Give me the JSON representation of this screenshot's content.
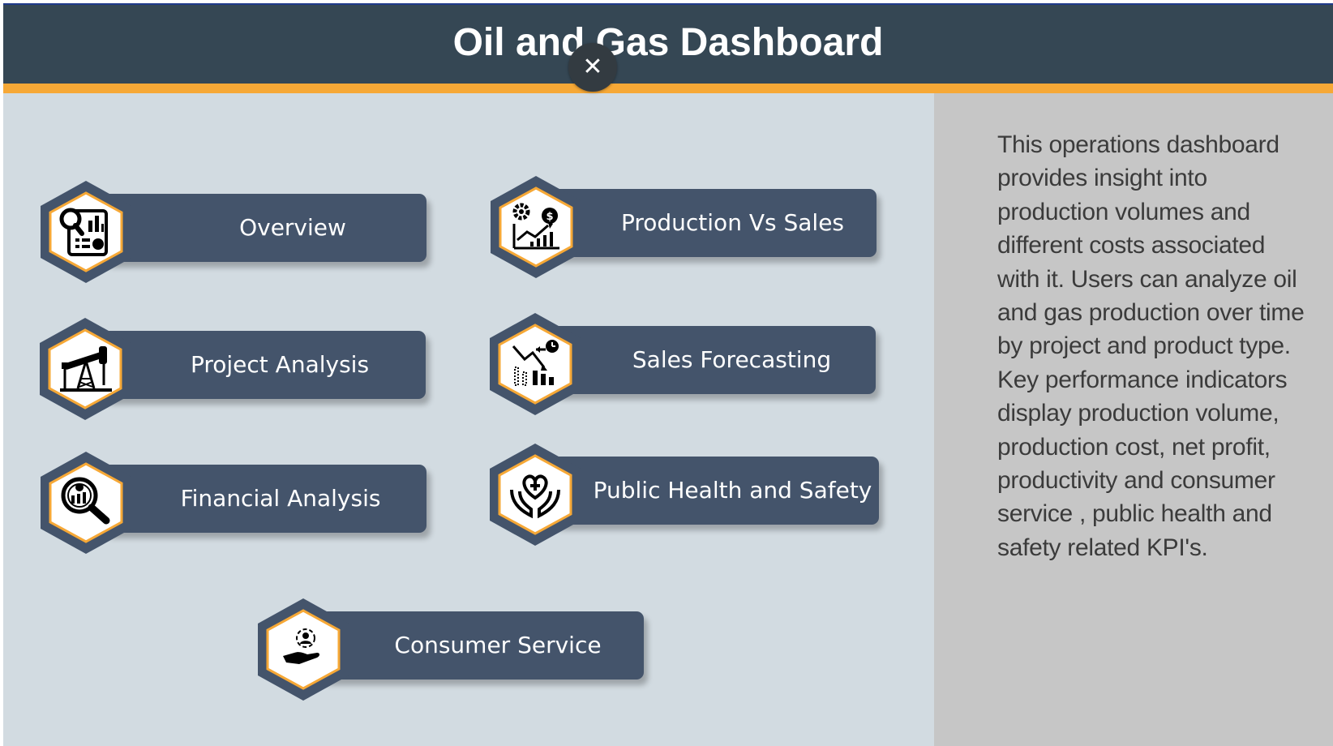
{
  "header": {
    "title": "Oil and Gas Dashboard",
    "close_symbol": "✕"
  },
  "nav": {
    "overview": {
      "label": "Overview",
      "icon": "report-analytics-icon"
    },
    "production_vs_sales": {
      "label": "Production Vs Sales",
      "icon": "growth-chart-money-icon"
    },
    "project_analysis": {
      "label": "Project Analysis",
      "icon": "oil-pump-jack-icon"
    },
    "sales_forecasting": {
      "label": "Sales Forecasting",
      "icon": "forecast-chart-icon"
    },
    "financial_analysis": {
      "label": "Financial Analysis",
      "icon": "financial-search-icon"
    },
    "public_health_safety": {
      "label": "Public Health and Safety",
      "icon": "health-care-hands-icon"
    },
    "consumer_service": {
      "label": "Consumer Service",
      "icon": "customer-service-hand-icon"
    }
  },
  "description": "This operations dashboard provides insight into production volumes and different costs associated with it. Users can analyze oil and gas production over time by project and product type. Key performance indicators display production volume, production cost, net profit, productivity and consumer service , public health and safety related KPI's.",
  "colors": {
    "header_bg": "#354754",
    "accent": "#f6a836",
    "button_bg": "#44546b",
    "page_bg": "#d2dbe1",
    "panel_bg": "#c6c6c6"
  }
}
